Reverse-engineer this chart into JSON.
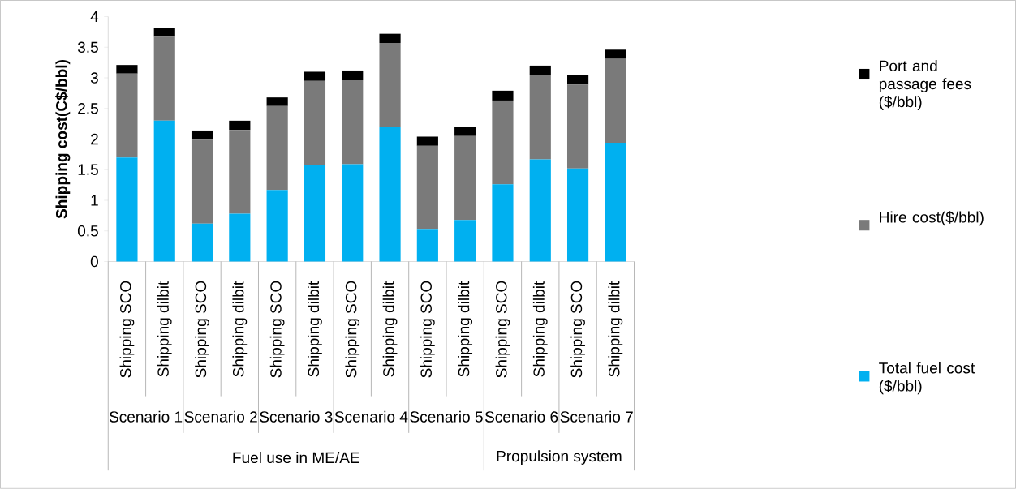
{
  "chart_data": {
    "type": "bar",
    "stacked": true,
    "ylabel": "Shipping cost(C$/bbl)",
    "categories": [
      "Shipping SCO",
      "Shipping dilbit",
      "Shipping SCO",
      "Shipping dilbit",
      "Shipping SCO",
      "Shipping dilbit",
      "Shipping SCO",
      "Shipping dilbit",
      "Shipping SCO",
      "Shipping dilbit",
      "Shipping SCO",
      "Shipping dilbit",
      "Shipping SCO",
      "Shipping dilbit"
    ],
    "series": [
      {
        "name": "Total fuel cost ($/bbl)",
        "color": "#00b0f0",
        "values": [
          1.7,
          2.3,
          0.62,
          0.78,
          1.17,
          1.58,
          1.59,
          2.2,
          0.52,
          0.68,
          1.26,
          1.67,
          1.52,
          1.94
        ]
      },
      {
        "name": "Hire cost($/bbl)",
        "color": "#7a7a7a",
        "values": [
          1.37,
          1.37,
          1.37,
          1.37,
          1.37,
          1.37,
          1.37,
          1.37,
          1.37,
          1.37,
          1.37,
          1.37,
          1.37,
          1.37
        ]
      },
      {
        "name": "Port and passage fees ($/bbl)",
        "color": "#000000",
        "values": [
          0.14,
          0.15,
          0.15,
          0.15,
          0.14,
          0.15,
          0.16,
          0.15,
          0.15,
          0.15,
          0.16,
          0.16,
          0.15,
          0.15
        ]
      }
    ],
    "ylim": [
      0,
      4
    ],
    "yticks": [
      0,
      0.5,
      1,
      1.5,
      2,
      2.5,
      3,
      3.5,
      4
    ],
    "grid": false,
    "legend": "right",
    "annotations": [
      "Scenario 1",
      "Scenario 2",
      "Scenario 3",
      "Scenario 4",
      "Scenario 5",
      "Scenario 6",
      "Scenario 7",
      "Fuel use in ME/AE",
      "Propulsion system"
    ]
  }
}
